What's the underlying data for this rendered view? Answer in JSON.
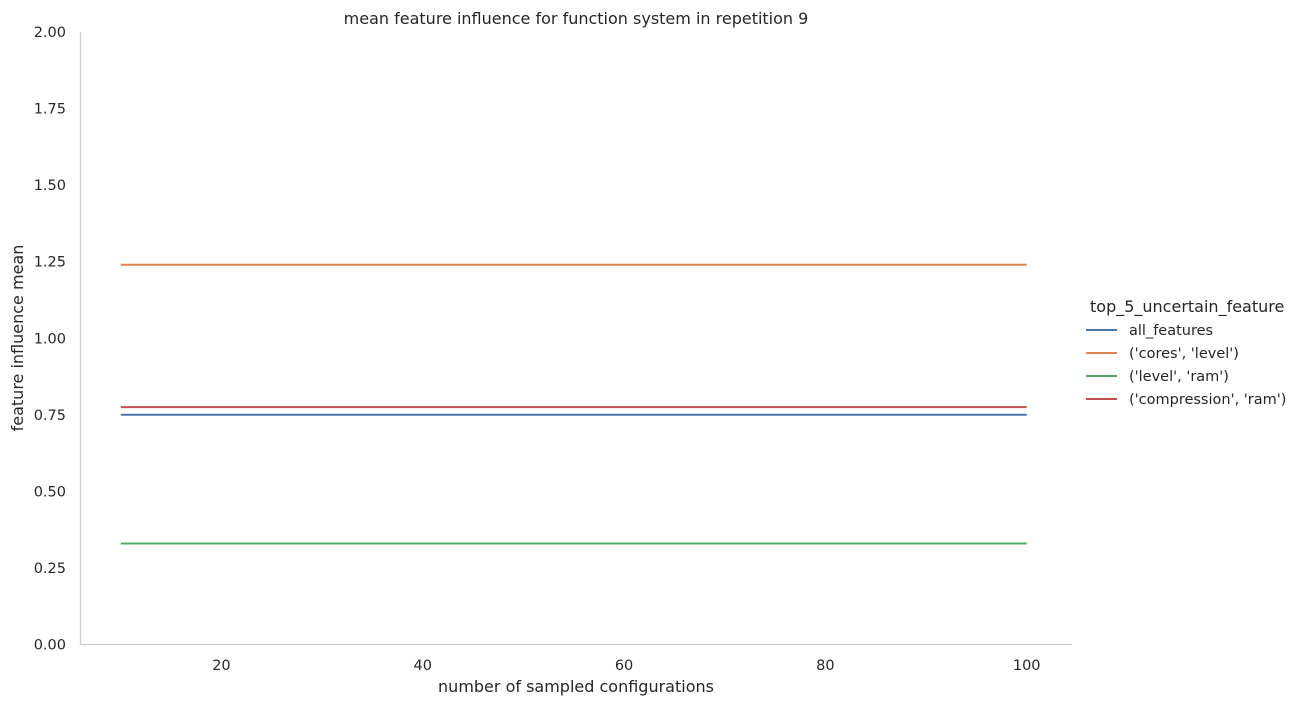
{
  "chart_data": {
    "type": "line",
    "title": "mean feature influence for function system in repetition 9",
    "xlabel": "number of sampled configurations",
    "ylabel": "feature influence mean",
    "xlim": [
      6,
      104.5
    ],
    "ylim": [
      0,
      2
    ],
    "xticks": [
      20,
      40,
      60,
      80,
      100
    ],
    "yticks": [
      0.0,
      0.25,
      0.5,
      0.75,
      1.0,
      1.25,
      1.5,
      1.75,
      2.0
    ],
    "xtick_labels": [
      "20",
      "40",
      "60",
      "80",
      "100"
    ],
    "ytick_labels": [
      "0.00",
      "0.25",
      "0.50",
      "0.75",
      "1.00",
      "1.25",
      "1.50",
      "1.75",
      "2.00"
    ],
    "grid": false,
    "legend_title": "top_5_uncertain_feature",
    "legend_position": "right",
    "series": [
      {
        "name": "all_features",
        "color": "#4c72b0",
        "x": [
          10,
          100
        ],
        "y": [
          0.75,
          0.75
        ]
      },
      {
        "name": "('cores', 'level')",
        "color": "#dd8452",
        "x": [
          10,
          100
        ],
        "y": [
          1.24,
          1.24
        ]
      },
      {
        "name": "('level', 'ram')",
        "color": "#55a868",
        "x": [
          10,
          100
        ],
        "y": [
          0.33,
          0.33
        ]
      },
      {
        "name": "('compression', 'ram')",
        "color": "#c44e52",
        "x": [
          10,
          100
        ],
        "y": [
          0.775,
          0.775
        ]
      }
    ]
  }
}
